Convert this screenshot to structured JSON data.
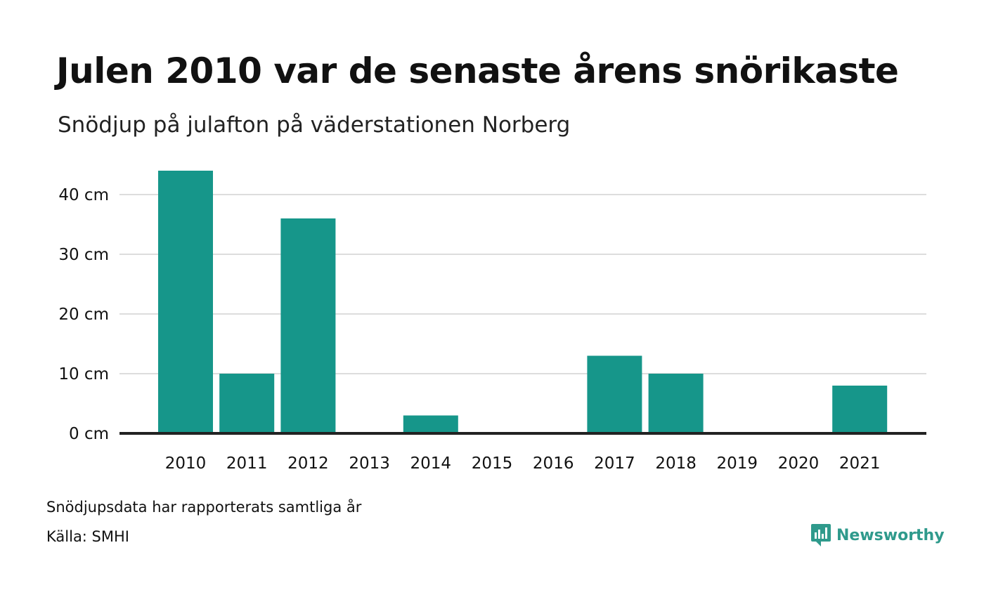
{
  "header": {
    "title": "Julen 2010 var de senaste årens snörikaste",
    "subtitle": "Snödjup på julafton på väderstationen Norberg"
  },
  "footer": {
    "note": "Snödjupsdata har rapporterats samtliga år",
    "source": "Källa: SMHI",
    "brand": "Newsworthy",
    "brand_icon": "newsworthy-logo-icon"
  },
  "colors": {
    "bar": "#16968a",
    "grid": "#dddddd",
    "baseline": "#222222",
    "brand": "#2f9a8c"
  },
  "chart_data": {
    "type": "bar",
    "categories": [
      "2010",
      "2011",
      "2012",
      "2013",
      "2014",
      "2015",
      "2016",
      "2017",
      "2018",
      "2019",
      "2020",
      "2021"
    ],
    "values": [
      44,
      10,
      36,
      0,
      3,
      0,
      0,
      13,
      10,
      0,
      0,
      8
    ],
    "yticks": [
      0,
      10,
      20,
      30,
      40
    ],
    "ytick_labels": [
      "0 cm",
      "10 cm",
      "20 cm",
      "30 cm",
      "40 cm"
    ],
    "ylim": [
      0,
      44
    ],
    "grid": true,
    "legend": "none"
  }
}
